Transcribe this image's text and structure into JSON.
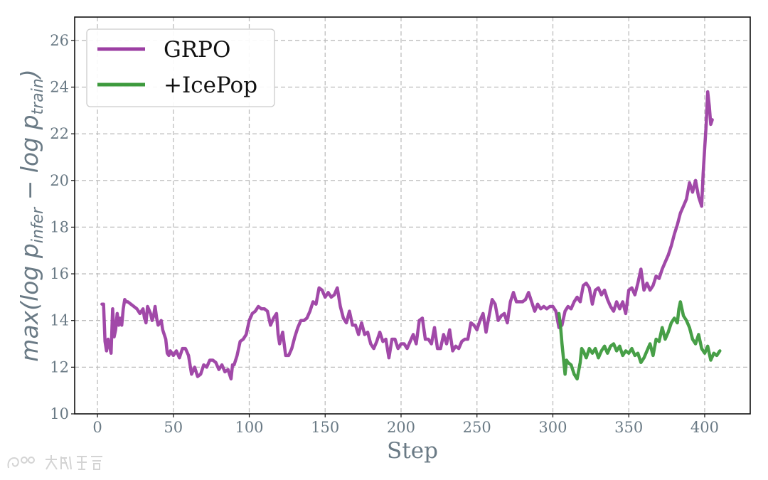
{
  "chart_data": {
    "type": "line",
    "title": "",
    "xlabel": "Step",
    "ylabel": {
      "prefix": "max(log ",
      "p1": "p",
      "sub1": "infer",
      "mid": " − log ",
      "p2": "p",
      "sub2": "train",
      "suffix": ")"
    },
    "xlim": [
      -15,
      430
    ],
    "ylim": [
      10,
      27
    ],
    "xticks": [
      0,
      50,
      100,
      150,
      200,
      250,
      300,
      350,
      400
    ],
    "yticks": [
      10,
      12,
      14,
      16,
      18,
      20,
      22,
      24,
      26
    ],
    "grid": true,
    "legend_position": "upper left",
    "series": [
      {
        "name": "GRPO",
        "color": "#9c3fa3",
        "points": [
          [
            3,
            14.7
          ],
          [
            4,
            14.7
          ],
          [
            5,
            13.1
          ],
          [
            6,
            12.7
          ],
          [
            7,
            13.2
          ],
          [
            8,
            12.9
          ],
          [
            9,
            12.6
          ],
          [
            10,
            14.5
          ],
          [
            11,
            13.3
          ],
          [
            12,
            13.6
          ],
          [
            13,
            14.3
          ],
          [
            14,
            13.8
          ],
          [
            15,
            14.1
          ],
          [
            16,
            13.8
          ],
          [
            17,
            14.5
          ],
          [
            18,
            14.9
          ],
          [
            19,
            14.8
          ],
          [
            20,
            14.8
          ],
          [
            22,
            14.7
          ],
          [
            24,
            14.6
          ],
          [
            26,
            14.5
          ],
          [
            28,
            14.3
          ],
          [
            30,
            14.5
          ],
          [
            31,
            14.1
          ],
          [
            32,
            13.9
          ],
          [
            33,
            14.6
          ],
          [
            35,
            14.3
          ],
          [
            36,
            14.0
          ],
          [
            37,
            14.2
          ],
          [
            38,
            14.6
          ],
          [
            39,
            14.1
          ],
          [
            40,
            13.8
          ],
          [
            42,
            14.0
          ],
          [
            43,
            13.6
          ],
          [
            45,
            13.2
          ],
          [
            46,
            12.6
          ],
          [
            47,
            12.5
          ],
          [
            48,
            12.7
          ],
          [
            50,
            12.5
          ],
          [
            52,
            12.7
          ],
          [
            54,
            12.4
          ],
          [
            56,
            12.8
          ],
          [
            58,
            12.8
          ],
          [
            60,
            12.5
          ],
          [
            62,
            11.7
          ],
          [
            64,
            12.0
          ],
          [
            66,
            11.6
          ],
          [
            68,
            11.7
          ],
          [
            70,
            12.1
          ],
          [
            72,
            12.0
          ],
          [
            74,
            12.3
          ],
          [
            76,
            12.3
          ],
          [
            78,
            12.2
          ],
          [
            80,
            11.9
          ],
          [
            82,
            12.1
          ],
          [
            84,
            11.8
          ],
          [
            86,
            11.9
          ],
          [
            88,
            11.5
          ],
          [
            89,
            12.1
          ],
          [
            90,
            12.1
          ],
          [
            92,
            12.5
          ],
          [
            94,
            13.1
          ],
          [
            96,
            13.2
          ],
          [
            98,
            13.4
          ],
          [
            100,
            14.0
          ],
          [
            102,
            14.3
          ],
          [
            104,
            14.4
          ],
          [
            106,
            14.6
          ],
          [
            108,
            14.5
          ],
          [
            110,
            14.5
          ],
          [
            112,
            14.4
          ],
          [
            114,
            13.8
          ],
          [
            116,
            14.1
          ],
          [
            118,
            14.3
          ],
          [
            119,
            13.4
          ],
          [
            120,
            13.0
          ],
          [
            122,
            13.5
          ],
          [
            124,
            12.5
          ],
          [
            126,
            12.5
          ],
          [
            128,
            12.8
          ],
          [
            130,
            13.3
          ],
          [
            132,
            13.7
          ],
          [
            134,
            14.0
          ],
          [
            136,
            14.0
          ],
          [
            138,
            14.1
          ],
          [
            140,
            14.4
          ],
          [
            142,
            14.8
          ],
          [
            144,
            14.7
          ],
          [
            146,
            15.4
          ],
          [
            148,
            15.3
          ],
          [
            150,
            15.0
          ],
          [
            152,
            15.2
          ],
          [
            154,
            15.0
          ],
          [
            156,
            15.1
          ],
          [
            158,
            15.4
          ],
          [
            160,
            14.6
          ],
          [
            162,
            14.1
          ],
          [
            164,
            13.9
          ],
          [
            166,
            14.4
          ],
          [
            168,
            13.8
          ],
          [
            170,
            13.8
          ],
          [
            172,
            13.4
          ],
          [
            174,
            13.9
          ],
          [
            176,
            13.4
          ],
          [
            178,
            13.5
          ],
          [
            180,
            13.0
          ],
          [
            182,
            12.8
          ],
          [
            184,
            13.1
          ],
          [
            186,
            13.5
          ],
          [
            188,
            13.1
          ],
          [
            190,
            13.2
          ],
          [
            192,
            12.4
          ],
          [
            194,
            13.2
          ],
          [
            196,
            13.2
          ],
          [
            198,
            12.8
          ],
          [
            200,
            13.0
          ],
          [
            202,
            13.0
          ],
          [
            204,
            12.8
          ],
          [
            206,
            13.1
          ],
          [
            208,
            13.4
          ],
          [
            210,
            13.0
          ],
          [
            212,
            14.0
          ],
          [
            214,
            14.1
          ],
          [
            216,
            13.2
          ],
          [
            218,
            13.2
          ],
          [
            220,
            13.0
          ],
          [
            222,
            13.7
          ],
          [
            224,
            12.8
          ],
          [
            226,
            12.8
          ],
          [
            228,
            13.4
          ],
          [
            230,
            13.0
          ],
          [
            232,
            13.6
          ],
          [
            234,
            12.7
          ],
          [
            236,
            12.9
          ],
          [
            238,
            12.8
          ],
          [
            240,
            13.1
          ],
          [
            242,
            13.2
          ],
          [
            244,
            13.2
          ],
          [
            246,
            13.9
          ],
          [
            248,
            13.8
          ],
          [
            250,
            13.6
          ],
          [
            252,
            14.0
          ],
          [
            254,
            14.3
          ],
          [
            256,
            13.5
          ],
          [
            258,
            14.2
          ],
          [
            260,
            14.9
          ],
          [
            262,
            14.7
          ],
          [
            264,
            14.0
          ],
          [
            266,
            14.2
          ],
          [
            268,
            14.3
          ],
          [
            270,
            13.9
          ],
          [
            272,
            14.8
          ],
          [
            274,
            15.2
          ],
          [
            276,
            14.8
          ],
          [
            278,
            14.8
          ],
          [
            280,
            14.8
          ],
          [
            282,
            14.9
          ],
          [
            284,
            15.2
          ],
          [
            286,
            14.8
          ],
          [
            288,
            14.4
          ],
          [
            290,
            14.7
          ],
          [
            292,
            14.5
          ],
          [
            294,
            14.6
          ],
          [
            296,
            14.5
          ],
          [
            298,
            14.6
          ],
          [
            300,
            14.6
          ],
          [
            302,
            14.4
          ],
          [
            304,
            13.7
          ],
          [
            306,
            13.8
          ],
          [
            308,
            14.4
          ],
          [
            310,
            14.6
          ],
          [
            312,
            14.5
          ],
          [
            314,
            14.8
          ],
          [
            316,
            15.0
          ],
          [
            318,
            14.8
          ],
          [
            320,
            15.5
          ],
          [
            322,
            15.6
          ],
          [
            324,
            15.4
          ],
          [
            326,
            14.7
          ],
          [
            328,
            15.3
          ],
          [
            330,
            15.4
          ],
          [
            332,
            15.1
          ],
          [
            334,
            15.3
          ],
          [
            336,
            14.9
          ],
          [
            338,
            14.6
          ],
          [
            340,
            14.4
          ],
          [
            342,
            14.8
          ],
          [
            344,
            14.5
          ],
          [
            346,
            14.8
          ],
          [
            348,
            14.3
          ],
          [
            350,
            15.3
          ],
          [
            352,
            15.4
          ],
          [
            354,
            15.1
          ],
          [
            356,
            15.6
          ],
          [
            358,
            16.2
          ],
          [
            360,
            15.3
          ],
          [
            362,
            15.6
          ],
          [
            364,
            15.3
          ],
          [
            366,
            15.5
          ],
          [
            368,
            15.9
          ],
          [
            370,
            15.8
          ],
          [
            372,
            16.2
          ],
          [
            374,
            16.5
          ],
          [
            376,
            16.8
          ],
          [
            378,
            17.2
          ],
          [
            380,
            17.7
          ],
          [
            382,
            18.1
          ],
          [
            384,
            18.6
          ],
          [
            386,
            18.9
          ],
          [
            388,
            19.2
          ],
          [
            390,
            19.9
          ],
          [
            392,
            19.5
          ],
          [
            394,
            20.0
          ],
          [
            396,
            19.3
          ],
          [
            398,
            18.9
          ],
          [
            399,
            20.3
          ],
          [
            400,
            21.4
          ],
          [
            401,
            22.4
          ],
          [
            402,
            23.8
          ],
          [
            403,
            23.2
          ],
          [
            404,
            22.4
          ],
          [
            405,
            22.6
          ]
        ]
      },
      {
        "name": "+IcePop",
        "color": "#3d9a3d",
        "points": [
          [
            304,
            14.3
          ],
          [
            305,
            13.8
          ],
          [
            306,
            13.0
          ],
          [
            308,
            11.7
          ],
          [
            309,
            12.3
          ],
          [
            310,
            12.2
          ],
          [
            312,
            12.1
          ],
          [
            314,
            11.7
          ],
          [
            316,
            11.5
          ],
          [
            318,
            12.2
          ],
          [
            319,
            12.8
          ],
          [
            320,
            12.7
          ],
          [
            322,
            12.4
          ],
          [
            324,
            12.8
          ],
          [
            326,
            12.6
          ],
          [
            328,
            12.8
          ],
          [
            330,
            12.4
          ],
          [
            332,
            12.7
          ],
          [
            334,
            12.9
          ],
          [
            336,
            12.6
          ],
          [
            338,
            12.9
          ],
          [
            340,
            13.0
          ],
          [
            342,
            12.7
          ],
          [
            344,
            12.9
          ],
          [
            346,
            12.5
          ],
          [
            348,
            12.7
          ],
          [
            350,
            12.6
          ],
          [
            352,
            12.8
          ],
          [
            354,
            12.5
          ],
          [
            356,
            12.6
          ],
          [
            358,
            12.2
          ],
          [
            360,
            12.4
          ],
          [
            362,
            12.7
          ],
          [
            364,
            13.0
          ],
          [
            366,
            12.5
          ],
          [
            368,
            13.2
          ],
          [
            370,
            13.1
          ],
          [
            372,
            13.7
          ],
          [
            374,
            13.2
          ],
          [
            376,
            13.5
          ],
          [
            378,
            13.9
          ],
          [
            380,
            14.1
          ],
          [
            382,
            13.9
          ],
          [
            383,
            14.5
          ],
          [
            384,
            14.8
          ],
          [
            386,
            14.2
          ],
          [
            388,
            14.0
          ],
          [
            390,
            13.7
          ],
          [
            392,
            13.2
          ],
          [
            394,
            13.0
          ],
          [
            396,
            13.4
          ],
          [
            398,
            12.8
          ],
          [
            400,
            12.6
          ],
          [
            402,
            12.9
          ],
          [
            404,
            12.3
          ],
          [
            406,
            12.6
          ],
          [
            408,
            12.5
          ],
          [
            410,
            12.7
          ]
        ]
      }
    ]
  }
}
